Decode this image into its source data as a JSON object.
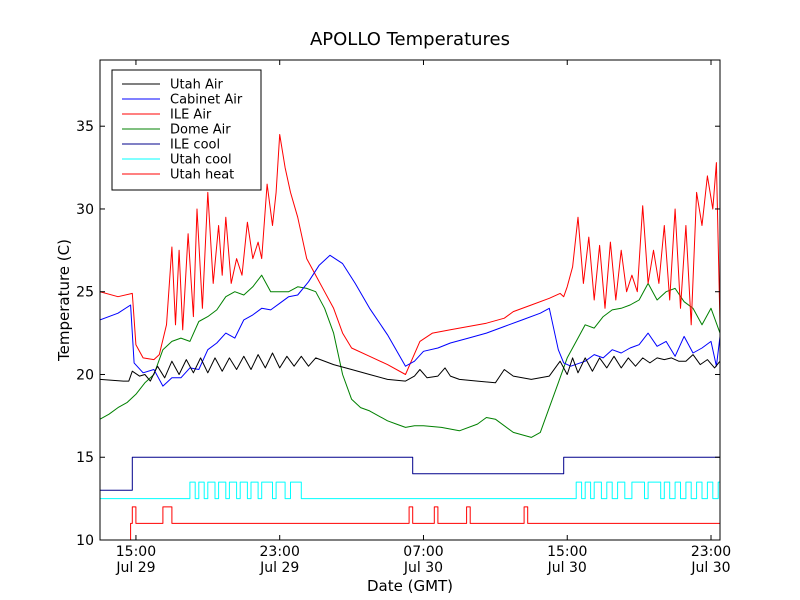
{
  "chart_data": {
    "type": "line",
    "title": "APOLLO Temperatures",
    "xlabel": "Date (GMT)",
    "ylabel": "Temperature (C)",
    "xlim": [
      13.0,
      47.5
    ],
    "ylim": [
      10,
      39
    ],
    "x_unit": "hours since Jul 29 00:00 GMT",
    "xticks": [
      {
        "x": 15,
        "line1": "15:00",
        "line2": "Jul 29"
      },
      {
        "x": 23,
        "line1": "23:00",
        "line2": "Jul 29"
      },
      {
        "x": 31,
        "line1": "07:00",
        "line2": "Jul 30"
      },
      {
        "x": 39,
        "line1": "15:00",
        "line2": "Jul 30"
      },
      {
        "x": 47,
        "line1": "23:00",
        "line2": "Jul 30"
      }
    ],
    "yticks": [
      10,
      15,
      20,
      25,
      30,
      35
    ],
    "legend_position": "top-left",
    "series": [
      {
        "name": "Utah Air",
        "color": "#000000",
        "x": [
          13.0,
          14.3,
          14.6,
          14.8,
          15.2,
          15.5,
          15.8,
          16.2,
          16.6,
          17.0,
          17.4,
          17.8,
          18.2,
          18.6,
          19.0,
          19.4,
          19.8,
          20.2,
          20.6,
          21.0,
          21.4,
          21.8,
          22.2,
          22.6,
          23.0,
          23.4,
          23.8,
          24.2,
          24.6,
          25.0,
          26.0,
          27.0,
          28.0,
          29.0,
          30.0,
          30.5,
          30.8,
          31.2,
          31.8,
          32.2,
          32.5,
          33.0,
          34.0,
          35.0,
          35.5,
          36.0,
          37.0,
          38.0,
          38.6,
          39.0,
          39.3,
          39.6,
          40.0,
          40.4,
          40.8,
          41.2,
          41.6,
          42.0,
          42.4,
          42.8,
          43.2,
          43.6,
          44.0,
          44.4,
          44.8,
          45.2,
          45.6,
          46.0,
          46.4,
          46.8,
          47.2,
          47.5
        ],
        "values": [
          19.7,
          19.6,
          19.6,
          20.2,
          19.9,
          20.0,
          19.6,
          20.5,
          19.8,
          20.8,
          20.0,
          20.9,
          20.1,
          21.0,
          20.1,
          21.0,
          20.2,
          21.0,
          20.3,
          21.1,
          20.3,
          21.2,
          20.4,
          21.3,
          20.4,
          21.1,
          20.5,
          21.1,
          20.5,
          21.0,
          20.6,
          20.3,
          20.0,
          19.7,
          19.6,
          19.9,
          20.3,
          19.8,
          19.9,
          20.4,
          19.9,
          19.7,
          19.6,
          19.5,
          20.3,
          19.9,
          19.7,
          19.9,
          20.8,
          20.0,
          21.0,
          20.1,
          21.0,
          20.2,
          21.0,
          20.4,
          21.1,
          20.4,
          21.0,
          20.5,
          21.0,
          20.7,
          21.0,
          20.9,
          21.0,
          20.8,
          20.8,
          21.2,
          20.6,
          20.9,
          20.4,
          20.8
        ]
      },
      {
        "name": "Cabinet Air",
        "color": "#0000ff",
        "x": [
          13.0,
          14.0,
          14.7,
          14.9,
          15.4,
          16.0,
          16.5,
          17.0,
          17.5,
          18.0,
          18.5,
          19.0,
          19.5,
          20.0,
          20.5,
          21.0,
          21.5,
          22.0,
          22.5,
          23.0,
          23.5,
          24.0,
          24.6,
          25.2,
          25.8,
          26.5,
          27.2,
          28.0,
          29.0,
          30.0,
          30.5,
          31.0,
          31.8,
          32.5,
          33.5,
          34.5,
          35.5,
          36.5,
          37.5,
          38.0,
          38.5,
          38.8,
          39.2,
          40.0,
          40.5,
          41.0,
          41.5,
          42.0,
          42.5,
          43.0,
          43.5,
          44.0,
          44.5,
          45.0,
          45.5,
          46.0,
          46.5,
          47.0,
          47.3,
          47.5
        ],
        "values": [
          23.3,
          23.7,
          24.2,
          20.7,
          20.1,
          20.3,
          19.3,
          19.8,
          19.8,
          20.4,
          20.3,
          21.5,
          21.9,
          22.5,
          22.2,
          23.3,
          23.6,
          24.0,
          23.9,
          24.3,
          24.7,
          24.8,
          25.6,
          26.6,
          27.2,
          26.7,
          25.5,
          24.0,
          22.4,
          20.5,
          20.8,
          21.4,
          21.6,
          21.9,
          22.2,
          22.5,
          22.9,
          23.3,
          23.7,
          24.0,
          21.5,
          20.7,
          20.5,
          20.8,
          21.2,
          21.0,
          21.5,
          21.3,
          21.6,
          21.8,
          22.5,
          21.7,
          22.0,
          21.1,
          22.3,
          21.3,
          21.6,
          22.0,
          20.5,
          22.3
        ]
      },
      {
        "name": "ILE Air",
        "color": "#ff0000",
        "x": [
          13.0,
          14.0,
          14.8,
          15.0,
          15.4,
          16.0,
          16.3,
          16.7,
          17.0,
          17.2,
          17.4,
          17.6,
          17.9,
          18.2,
          18.4,
          18.7,
          19.0,
          19.3,
          19.6,
          19.8,
          20.0,
          20.3,
          20.6,
          20.9,
          21.2,
          21.5,
          21.8,
          22.0,
          22.3,
          22.6,
          22.8,
          23.0,
          23.3,
          23.6,
          24.0,
          24.5,
          25.0,
          25.5,
          26.0,
          26.5,
          27.0,
          28.0,
          29.0,
          30.0,
          30.8,
          31.5,
          32.5,
          33.5,
          34.5,
          35.5,
          36.0,
          37.0,
          38.0,
          38.6,
          38.8,
          39.0,
          39.3,
          39.6,
          39.9,
          40.2,
          40.5,
          40.8,
          41.1,
          41.4,
          41.7,
          42.0,
          42.3,
          42.6,
          42.9,
          43.2,
          43.5,
          43.8,
          44.1,
          44.4,
          44.7,
          45.0,
          45.3,
          45.6,
          45.9,
          46.2,
          46.5,
          46.8,
          47.1,
          47.3,
          47.5
        ],
        "values": [
          25.0,
          24.7,
          24.9,
          21.8,
          21.0,
          20.9,
          21.2,
          23.0,
          27.7,
          23.0,
          27.5,
          22.7,
          28.5,
          23.5,
          30.0,
          24.0,
          31.0,
          25.5,
          29.0,
          26.0,
          29.5,
          25.5,
          27.0,
          26.0,
          29.2,
          27.0,
          28.0,
          27.0,
          31.5,
          29.0,
          31.0,
          34.5,
          32.5,
          31.0,
          29.5,
          27.0,
          26.0,
          25.0,
          24.0,
          22.5,
          21.6,
          21.1,
          20.6,
          20.0,
          22.0,
          22.5,
          22.7,
          22.9,
          23.1,
          23.4,
          23.8,
          24.2,
          24.6,
          24.9,
          24.7,
          25.3,
          26.5,
          29.5,
          25.5,
          28.3,
          24.5,
          27.8,
          24.0,
          28.0,
          24.5,
          27.5,
          25.0,
          26.0,
          25.0,
          30.2,
          25.5,
          27.5,
          25.5,
          29.0,
          24.5,
          30.0,
          24.0,
          29.0,
          23.0,
          31.0,
          29.0,
          32.0,
          30.0,
          32.8,
          23.0
        ]
      },
      {
        "name": "Dome Air",
        "color": "#008000",
        "x": [
          13.0,
          13.5,
          14.0,
          14.5,
          15.0,
          15.5,
          16.0,
          16.5,
          17.0,
          17.5,
          18.0,
          18.5,
          19.0,
          19.5,
          20.0,
          20.5,
          21.0,
          21.5,
          22.0,
          22.5,
          23.0,
          23.5,
          24.0,
          24.5,
          25.0,
          25.5,
          26.0,
          26.5,
          27.0,
          27.5,
          28.0,
          28.5,
          29.0,
          29.5,
          30.0,
          30.5,
          31.0,
          32.0,
          33.0,
          34.0,
          34.5,
          35.0,
          36.0,
          37.0,
          37.5,
          38.0,
          38.5,
          39.0,
          39.5,
          40.0,
          40.5,
          41.0,
          41.5,
          42.0,
          42.5,
          43.0,
          43.5,
          44.0,
          44.5,
          45.0,
          45.5,
          46.0,
          46.5,
          47.0,
          47.5
        ],
        "values": [
          17.3,
          17.6,
          18.0,
          18.3,
          18.8,
          19.5,
          20.0,
          21.5,
          22.0,
          22.2,
          22.0,
          23.2,
          23.5,
          23.9,
          24.7,
          25.0,
          24.8,
          25.3,
          26.0,
          25.0,
          25.0,
          25.0,
          25.3,
          25.2,
          25.0,
          24.0,
          22.5,
          20.0,
          18.5,
          18.0,
          17.8,
          17.5,
          17.2,
          17.0,
          16.8,
          16.9,
          16.9,
          16.8,
          16.6,
          17.0,
          17.4,
          17.3,
          16.5,
          16.2,
          16.5,
          18.0,
          19.5,
          21.0,
          22.0,
          23.0,
          22.8,
          23.5,
          23.9,
          24.0,
          24.2,
          24.5,
          25.5,
          24.5,
          25.0,
          25.2,
          24.4,
          24.0,
          23.0,
          24.0,
          22.5
        ]
      },
      {
        "name": "ILE cool",
        "color": "#00008b",
        "step": true,
        "x": [
          13.0,
          14.8,
          14.8,
          30.4,
          30.4,
          38.8,
          38.8,
          47.5
        ],
        "values": [
          13.0,
          13.0,
          15.0,
          15.0,
          14.0,
          14.0,
          15.0,
          15.0
        ]
      },
      {
        "name": "Utah cool",
        "color": "#00ffff",
        "step": true,
        "pulse_high": 13.5,
        "pulse_low": 12.5,
        "x": [
          13.0,
          18.0,
          18.0,
          18.3,
          18.3,
          18.5,
          18.5,
          18.8,
          18.8,
          19.0,
          19.0,
          19.4,
          19.4,
          19.6,
          19.6,
          20.0,
          20.0,
          20.2,
          20.2,
          20.6,
          20.6,
          20.8,
          20.8,
          21.2,
          21.2,
          21.4,
          21.4,
          21.8,
          21.8,
          22.0,
          22.0,
          22.6,
          22.6,
          22.8,
          22.8,
          23.3,
          23.3,
          23.6,
          23.6,
          24.2,
          24.2,
          39.5,
          39.5,
          39.8,
          39.8,
          40.0,
          40.0,
          40.3,
          40.3,
          40.5,
          40.5,
          40.9,
          40.9,
          41.2,
          41.2,
          41.5,
          41.5,
          41.8,
          41.8,
          42.2,
          42.2,
          42.6,
          42.6,
          43.3,
          43.3,
          43.5,
          43.5,
          44.2,
          44.2,
          44.4,
          44.4,
          44.7,
          44.7,
          45.0,
          45.0,
          45.3,
          45.3,
          45.6,
          45.6,
          45.9,
          45.9,
          46.2,
          46.2,
          46.5,
          46.5,
          46.8,
          46.8,
          47.1,
          47.1,
          47.4,
          47.4,
          47.5
        ],
        "values": [
          12.5,
          12.5,
          13.5,
          13.5,
          12.5,
          12.5,
          13.5,
          13.5,
          12.5,
          12.5,
          13.5,
          13.5,
          12.5,
          12.5,
          13.5,
          13.5,
          12.5,
          12.5,
          13.5,
          13.5,
          12.5,
          12.5,
          13.5,
          13.5,
          12.5,
          12.5,
          13.5,
          13.5,
          12.5,
          12.5,
          13.5,
          13.5,
          12.5,
          12.5,
          13.5,
          13.5,
          12.5,
          12.5,
          13.5,
          13.5,
          12.5,
          12.5,
          13.5,
          13.5,
          12.5,
          12.5,
          13.5,
          13.5,
          12.5,
          12.5,
          13.5,
          13.5,
          12.5,
          12.5,
          13.5,
          13.5,
          12.5,
          12.5,
          13.5,
          13.5,
          12.5,
          12.5,
          13.5,
          13.5,
          12.5,
          12.5,
          13.5,
          13.5,
          12.5,
          12.5,
          13.5,
          13.5,
          12.5,
          12.5,
          13.5,
          13.5,
          12.5,
          12.5,
          13.5,
          13.5,
          12.5,
          12.5,
          13.5,
          13.5,
          12.5,
          12.5,
          13.5,
          13.5,
          12.5,
          12.5,
          13.5,
          13.5
        ]
      },
      {
        "name": "Utah heat",
        "color": "#ff0000",
        "step": true,
        "x": [
          14.7,
          14.7,
          14.8,
          14.8,
          15.0,
          15.0,
          16.5,
          16.5,
          17.0,
          17.0,
          30.2,
          30.2,
          30.4,
          30.4,
          31.6,
          31.6,
          31.8,
          31.8,
          33.4,
          33.4,
          33.6,
          33.6,
          36.6,
          36.6,
          36.8,
          36.8,
          47.5
        ],
        "values": [
          10.0,
          11.0,
          11.0,
          12.0,
          12.0,
          11.0,
          11.0,
          12.0,
          12.0,
          11.0,
          11.0,
          12.0,
          12.0,
          11.0,
          11.0,
          12.0,
          12.0,
          11.0,
          11.0,
          12.0,
          12.0,
          11.0,
          11.0,
          12.0,
          12.0,
          11.0,
          11.0
        ]
      }
    ]
  }
}
